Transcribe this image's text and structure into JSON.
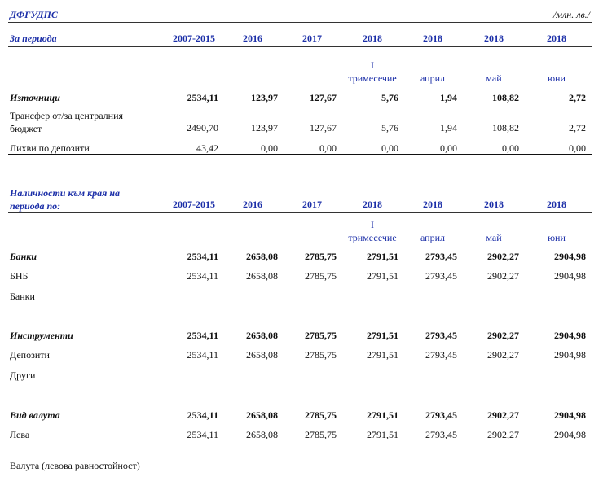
{
  "header": {
    "title": "ДФГУДПС",
    "unit": "/млн. лв./"
  },
  "sections": [
    {
      "label": "За периода",
      "columns": [
        "2007-2015",
        "2016",
        "2017",
        "2018",
        "2018",
        "2018",
        "2018"
      ],
      "subcolumns": [
        null,
        null,
        null,
        "I\nтримесечие",
        "април",
        "май",
        "юни"
      ],
      "rows": [
        {
          "label": "Източници",
          "bold": true,
          "values": [
            "2534,11",
            "123,97",
            "127,67",
            "5,76",
            "1,94",
            "108,82",
            "2,72"
          ]
        },
        {
          "label": "Трансфер от/за централния бюджет",
          "bold": false,
          "values": [
            "2490,70",
            "123,97",
            "127,67",
            "5,76",
            "1,94",
            "108,82",
            "2,72"
          ]
        },
        {
          "label": "Лихви по депозити",
          "bold": false,
          "values": [
            "43,42",
            "0,00",
            "0,00",
            "0,00",
            "0,00",
            "0,00",
            "0,00"
          ]
        }
      ]
    },
    {
      "label": "Наличности към края на периода по:",
      "columns": [
        "2007-2015",
        "2016",
        "2017",
        "2018",
        "2018",
        "2018",
        "2018"
      ],
      "subcolumns": [
        null,
        null,
        null,
        "I\nтримесечие",
        "април",
        "май",
        "юни"
      ],
      "rows": [
        {
          "label": "Банки",
          "bold": true,
          "values": [
            "2534,11",
            "2658,08",
            "2785,75",
            "2791,51",
            "2793,45",
            "2902,27",
            "2904,98"
          ]
        },
        {
          "label": "БНБ",
          "bold": false,
          "values": [
            "2534,11",
            "2658,08",
            "2785,75",
            "2791,51",
            "2793,45",
            "2902,27",
            "2904,98"
          ]
        },
        {
          "label": "Банки",
          "bold": false,
          "values": []
        },
        {
          "label": "Инструменти",
          "bold": true,
          "values": [
            "2534,11",
            "2658,08",
            "2785,75",
            "2791,51",
            "2793,45",
            "2902,27",
            "2904,98"
          ]
        },
        {
          "label": "Депозити",
          "bold": false,
          "values": [
            "2534,11",
            "2658,08",
            "2785,75",
            "2791,51",
            "2793,45",
            "2902,27",
            "2904,98"
          ]
        },
        {
          "label": "Други",
          "bold": false,
          "values": []
        },
        {
          "label": "Вид валута",
          "bold": true,
          "values": [
            "2534,11",
            "2658,08",
            "2785,75",
            "2791,51",
            "2793,45",
            "2902,27",
            "2904,98"
          ]
        },
        {
          "label": "Лева",
          "bold": false,
          "values": [
            "2534,11",
            "2658,08",
            "2785,75",
            "2791,51",
            "2793,45",
            "2902,27",
            "2904,98"
          ]
        },
        {
          "label": "Валута (левова равностойност)",
          "bold": false,
          "values": []
        }
      ]
    }
  ]
}
